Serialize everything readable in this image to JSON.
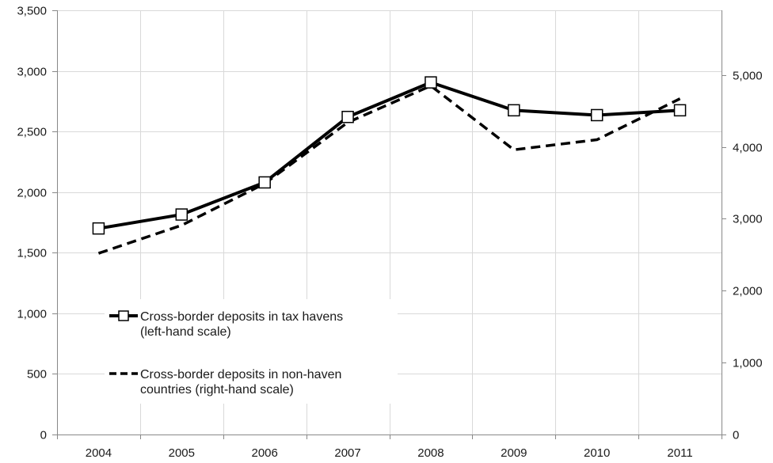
{
  "chart_data": {
    "type": "line",
    "categories": [
      "2004",
      "2005",
      "2006",
      "2007",
      "2008",
      "2009",
      "2010",
      "2011"
    ],
    "series": [
      {
        "name": "Cross-border deposits in tax havens (left-hand scale)",
        "legend_lines": [
          "Cross-border deposits in tax havens",
          "(left-hand scale)"
        ],
        "axis": "left",
        "style": "solid-with-square-markers",
        "values": [
          1700,
          1815,
          2080,
          2620,
          2905,
          2675,
          2635,
          2675
        ]
      },
      {
        "name": "Cross-border deposits in non-haven countries (right-hand scale)",
        "legend_lines": [
          "Cross-border deposits in non-haven",
          "countries (right-hand scale)"
        ],
        "axis": "right",
        "style": "dashed",
        "values": [
          2520,
          2910,
          3490,
          4340,
          4850,
          3960,
          4100,
          4670
        ]
      }
    ],
    "y_left": {
      "min": 0,
      "max": 3500,
      "step": 500,
      "ticks": [
        "0",
        "500",
        "1,000",
        "1,500",
        "2,000",
        "2,500",
        "3,000",
        "3,500"
      ]
    },
    "y_right": {
      "min": 0,
      "max": 5900,
      "tick_values": [
        0,
        1000,
        2000,
        3000,
        4000,
        5000
      ],
      "ticks": [
        "0",
        "1,000",
        "2,000",
        "3,000",
        "4,000",
        "5,000"
      ]
    },
    "grid": true,
    "legend_position": "center-left",
    "colors": {
      "line": "#000000",
      "grid": "#d9d9d9",
      "axis": "#888888"
    }
  }
}
